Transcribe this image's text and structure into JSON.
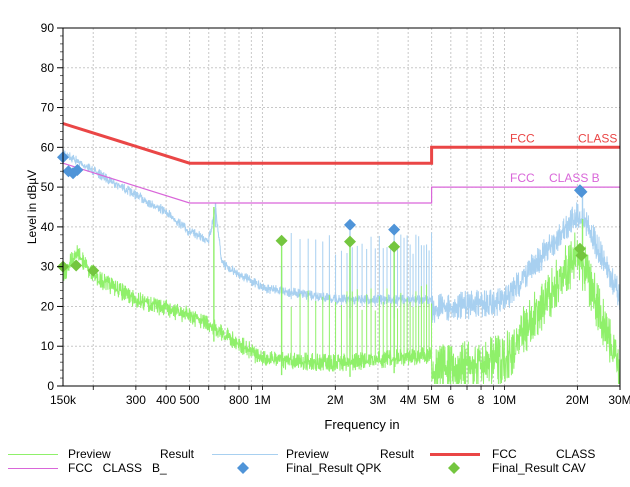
{
  "chart_data": {
    "type": "line",
    "title": "",
    "xlabel": "Frequency in",
    "ylabel": "Level in dBµV",
    "x_scale": "log",
    "xlim_hz": [
      150000,
      30000000
    ],
    "ylim": [
      0,
      90
    ],
    "y_ticks": [
      0,
      10,
      20,
      30,
      40,
      50,
      60,
      70,
      80,
      90
    ],
    "x_major_ticks": [
      {
        "hz": 150000,
        "label": "150k"
      },
      {
        "hz": 300000,
        "label": "300"
      },
      {
        "hz": 400000,
        "label": "400"
      },
      {
        "hz": 500000,
        "label": "500"
      },
      {
        "hz": 800000,
        "label": "800"
      },
      {
        "hz": 1000000,
        "label": "1M"
      },
      {
        "hz": 2000000,
        "label": "2M"
      },
      {
        "hz": 3000000,
        "label": "3M"
      },
      {
        "hz": 4000000,
        "label": "4M"
      },
      {
        "hz": 5000000,
        "label": "5M"
      },
      {
        "hz": 6000000,
        "label": "6"
      },
      {
        "hz": 8000000,
        "label": "8"
      },
      {
        "hz": 10000000,
        "label": "10M"
      },
      {
        "hz": 20000000,
        "label": "20M"
      },
      {
        "hz": 30000000,
        "label": "30M"
      }
    ],
    "grid": true,
    "colors": {
      "preview_cav": "#8ff06a",
      "preview_qpk": "#a8d0f0",
      "limit_qp": "#ea4646",
      "limit_av": "#d966d9",
      "final_qpk": "#4f94d8",
      "final_cav": "#74c63f",
      "grid": "#c8c8c8",
      "plot_border": "#000000"
    },
    "series": [
      {
        "name": "FCC CLASS",
        "kind": "limit",
        "style": "thick",
        "points": [
          [
            150000,
            66
          ],
          [
            500000,
            56
          ],
          [
            5000000,
            56
          ],
          [
            5000000,
            60
          ],
          [
            30000000,
            60
          ]
        ],
        "inline_label": "FCC CLASS"
      },
      {
        "name": "FCC CLASS B_",
        "kind": "limit",
        "style": "thin",
        "points": [
          [
            150000,
            56
          ],
          [
            500000,
            46
          ],
          [
            5000000,
            46
          ],
          [
            5000000,
            50
          ],
          [
            30000000,
            50
          ]
        ],
        "inline_label": "FCC CLASS B"
      },
      {
        "name": "Preview Result",
        "kind": "spectrum-qpk",
        "envelope": [
          [
            150000,
            60
          ],
          [
            180000,
            57
          ],
          [
            250000,
            52
          ],
          [
            400000,
            45
          ],
          [
            500000,
            40
          ],
          [
            600000,
            38
          ],
          [
            640000,
            46
          ],
          [
            680000,
            32
          ],
          [
            1000000,
            26
          ],
          [
            2000000,
            23
          ],
          [
            5000000,
            23
          ],
          [
            10000000,
            25
          ],
          [
            20000000,
            47
          ],
          [
            22000000,
            44
          ],
          [
            30000000,
            26
          ]
        ],
        "spikes": [
          [
            640000,
            46
          ],
          [
            2300000,
            39
          ],
          [
            3500000,
            38
          ],
          [
            1200000,
            30
          ],
          [
            21000000,
            50
          ]
        ]
      },
      {
        "name": "Preview Result",
        "kind": "spectrum-cav",
        "envelope": [
          [
            150000,
            30
          ],
          [
            170000,
            36
          ],
          [
            200000,
            30
          ],
          [
            300000,
            24
          ],
          [
            500000,
            20
          ],
          [
            600000,
            18
          ],
          [
            800000,
            13
          ],
          [
            1000000,
            9
          ],
          [
            2000000,
            8
          ],
          [
            5000000,
            10
          ],
          [
            10000000,
            13
          ],
          [
            20000000,
            40
          ],
          [
            22000000,
            34
          ],
          [
            30000000,
            10
          ]
        ],
        "spikes": [
          [
            630000,
            45
          ],
          [
            1200000,
            35
          ],
          [
            2300000,
            35
          ],
          [
            3500000,
            34
          ],
          [
            21000000,
            42
          ]
        ]
      }
    ],
    "markers": [
      {
        "name": "Final_Result QPK",
        "shape": "diamond",
        "points": [
          [
            150000,
            57.5
          ],
          [
            158000,
            54
          ],
          [
            165000,
            53.5
          ],
          [
            172000,
            54.3
          ],
          [
            2300000,
            40.5
          ],
          [
            3500000,
            39.3
          ],
          [
            20500000,
            49.2
          ],
          [
            20800000,
            48.8
          ]
        ]
      },
      {
        "name": "Final_Result CAV",
        "shape": "diamond",
        "points": [
          [
            150000,
            30
          ],
          [
            170000,
            30.3
          ],
          [
            200000,
            29
          ],
          [
            1200000,
            36.5
          ],
          [
            2300000,
            36.3
          ],
          [
            3500000,
            35
          ],
          [
            20500000,
            34.5
          ],
          [
            20800000,
            32.8
          ]
        ]
      }
    ]
  },
  "legend": {
    "row1": [
      {
        "name": "Preview Result",
        "text_a": "Preview",
        "text_b": "Result"
      },
      {
        "name": "Preview Result",
        "text_a": "Preview",
        "text_b": "Result"
      },
      {
        "name": "FCC CLASS",
        "text_a": "FCC",
        "text_b": "CLASS"
      }
    ],
    "row2": [
      {
        "name": "FCC CLASS B_",
        "text": "FCC   CLASS   B_"
      },
      {
        "name": "Final_Result QPK",
        "text": "Final_Result QPK"
      },
      {
        "name": "Final_Result CAV",
        "text": "Final_Result CAV"
      }
    ]
  }
}
